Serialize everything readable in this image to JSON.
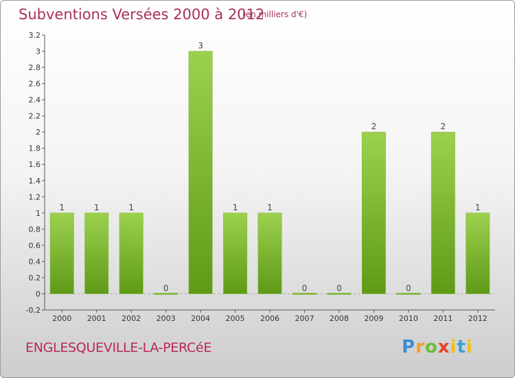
{
  "title": "Subventions Versées 2000 à 2012",
  "unit_note": "(en milliers d'€)",
  "commune": "ENGLESQUEVILLE-LA-PERCéE",
  "logo_text": "Proxiti",
  "colors": {
    "bar_top": "#9cd14e",
    "bar_bottom": "#5f9a16",
    "title": "#a8305a"
  },
  "chart_data": {
    "type": "bar",
    "categories": [
      "2000",
      "2001",
      "2002",
      "2003",
      "2004",
      "2005",
      "2006",
      "2007",
      "2008",
      "2009",
      "2010",
      "2011",
      "2012"
    ],
    "values": [
      1,
      1,
      1,
      0,
      3,
      1,
      1,
      0,
      0,
      2,
      0,
      2,
      1
    ],
    "data_labels": [
      "1",
      "1",
      "1",
      "0",
      "3",
      "1",
      "1",
      "0",
      "0",
      "2",
      "0",
      "2",
      "1"
    ],
    "ylim": [
      -0.2,
      3.2
    ],
    "yticks": [
      -0.2,
      0,
      0.2,
      0.4,
      0.6,
      0.8,
      1,
      1.2,
      1.4,
      1.6,
      1.8,
      2,
      2.2,
      2.4,
      2.6,
      2.8,
      3,
      3.2
    ],
    "ytick_labels": [
      "-0.2",
      "0",
      "0.2",
      "0.4",
      "0.6",
      "0.8",
      "1",
      "1.2",
      "1.4",
      "1.6",
      "1.8",
      "2",
      "2.2",
      "2.4",
      "2.6",
      "2.8",
      "3",
      "3.2"
    ],
    "grid": false,
    "legend": "none"
  }
}
